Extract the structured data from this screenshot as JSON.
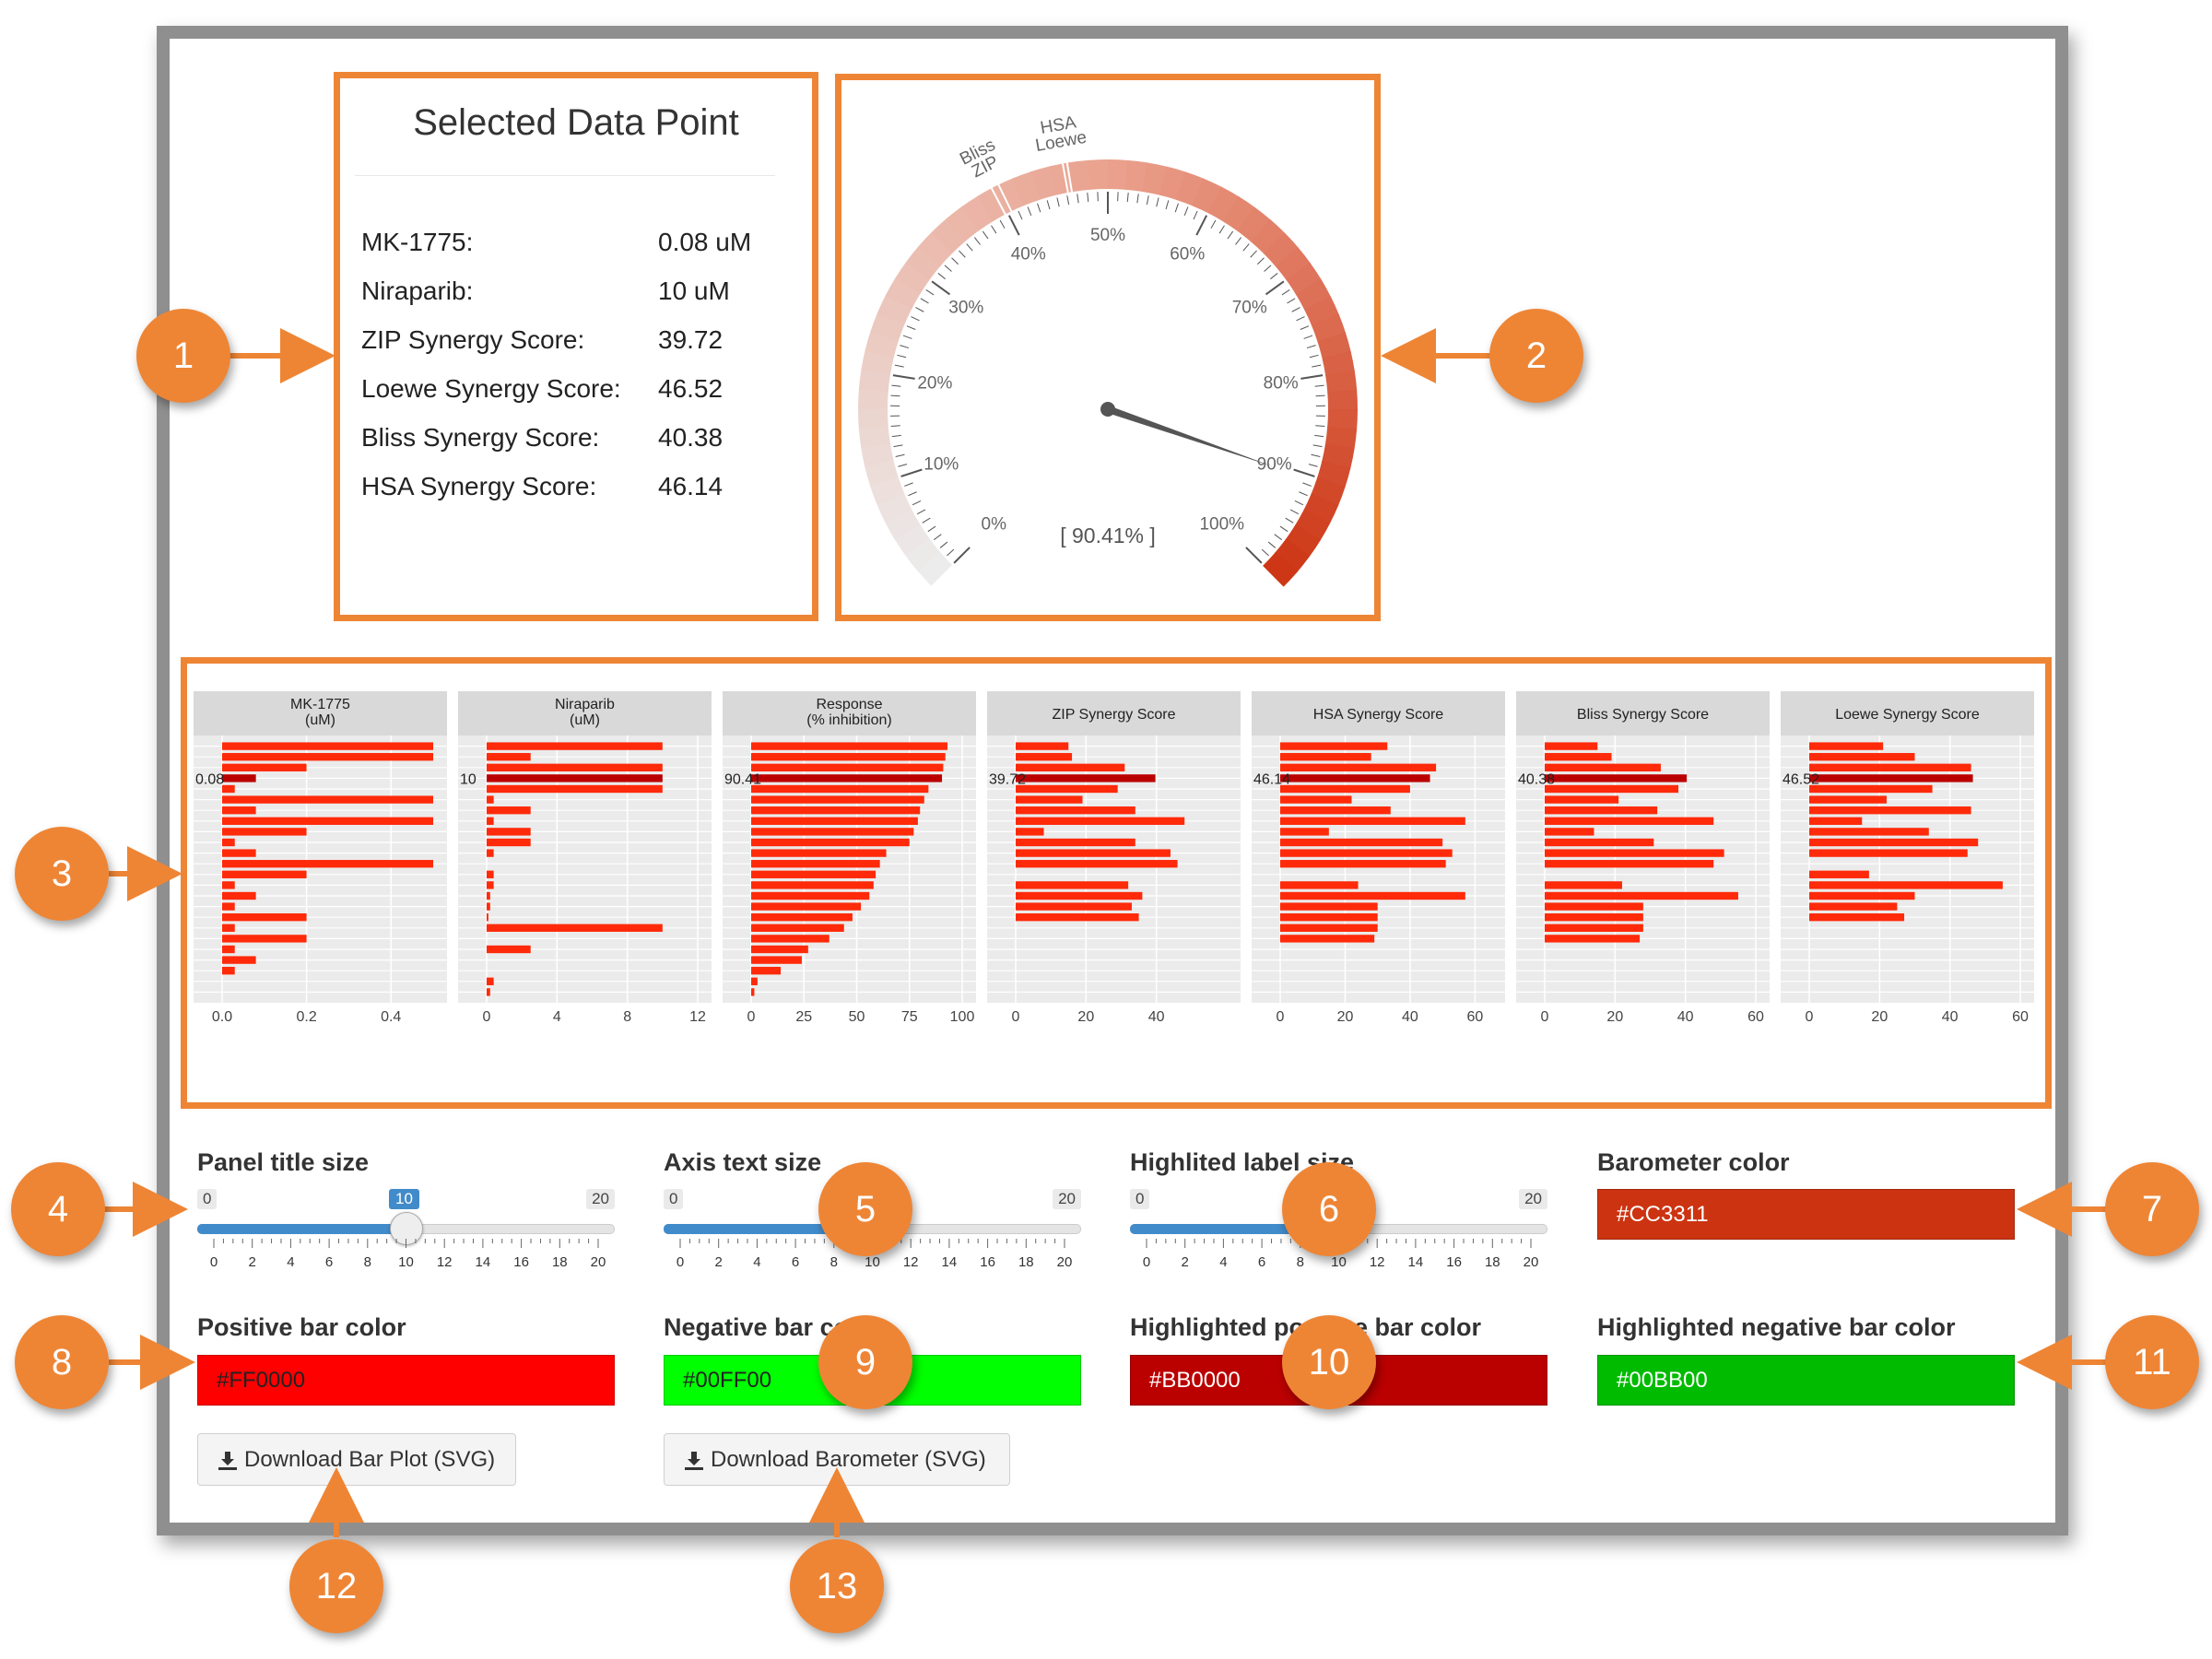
{
  "info": {
    "title": "Selected Data Point",
    "rows": [
      {
        "label": "MK-1775:",
        "value": "0.08 uM"
      },
      {
        "label": "Niraparib:",
        "value": "10 uM"
      },
      {
        "label": "ZIP Synergy Score:",
        "value": "39.72"
      },
      {
        "label": "Loewe Synergy Score:",
        "value": "46.52"
      },
      {
        "label": "Bliss Synergy Score:",
        "value": "40.38"
      },
      {
        "label": "HSA Synergy Score:",
        "value": "46.14"
      }
    ]
  },
  "gauge": {
    "value": 90.41,
    "readout": "[ 90.41% ]",
    "tick_labels": [
      "0%",
      "10%",
      "20%",
      "30%",
      "40%",
      "50%",
      "60%",
      "70%",
      "80%",
      "90%",
      "100%"
    ],
    "markers": [
      {
        "label": "HSA",
        "value": 46.14
      },
      {
        "label": "Loewe",
        "value": 46.52
      },
      {
        "label": "Bliss",
        "value": 40.38
      },
      {
        "label": "ZIP",
        "value": 39.72
      }
    ]
  },
  "chart_data": {
    "type": "bar",
    "orientation": "horizontal",
    "panels": [
      {
        "title": [
          "MK-1775",
          "(uM)"
        ],
        "xlim": [
          0,
          0.5
        ],
        "ticks": [
          0.0,
          0.2,
          0.4
        ],
        "tick_labels": [
          "0.0",
          "0.2",
          "0.4"
        ],
        "highlight_label": "0.08",
        "highlight_index": 3,
        "values": [
          0.5,
          0.5,
          0.2,
          0.08,
          0.03,
          0.5,
          0.08,
          0.5,
          0.2,
          0.03,
          0.08,
          0.5,
          0.2,
          0.03,
          0.08,
          0.03,
          0.2,
          0.03,
          0.2,
          0.03,
          0.08,
          0.03,
          0,
          0
        ]
      },
      {
        "title": [
          "Niraparib",
          "(uM)"
        ],
        "xlim": [
          0,
          12
        ],
        "ticks": [
          0,
          4,
          8,
          12
        ],
        "tick_labels": [
          "0",
          "4",
          "8",
          "12"
        ],
        "highlight_label": "10",
        "highlight_index": 3,
        "values": [
          10,
          2.5,
          10,
          10,
          10,
          0.4,
          2.5,
          0.4,
          2.5,
          2.5,
          0.4,
          0,
          0.4,
          0.4,
          0.2,
          0.2,
          0.1,
          10,
          0,
          2.5,
          0,
          0,
          0.4,
          0.2
        ]
      },
      {
        "title": [
          "Response",
          "(% inhibition)"
        ],
        "xlim": [
          0,
          100
        ],
        "ticks": [
          0,
          25,
          50,
          75,
          100
        ],
        "tick_labels": [
          "0",
          "25",
          "50",
          "75",
          "100"
        ],
        "highlight_label": "90.41",
        "highlight_index": 3,
        "values": [
          93,
          92,
          91,
          90.41,
          84,
          82,
          80,
          79,
          77,
          75,
          64,
          61,
          59,
          58,
          56,
          52,
          48,
          44,
          37,
          27,
          24,
          14,
          3,
          1.5
        ]
      },
      {
        "title": [
          "ZIP Synergy Score"
        ],
        "xlim": [
          0,
          60
        ],
        "ticks": [
          0,
          20,
          40
        ],
        "tick_labels": [
          "0",
          "20",
          "40"
        ],
        "highlight_label": "39.72",
        "highlight_index": 3,
        "values": [
          15,
          16,
          31,
          39.72,
          29,
          19,
          34,
          48,
          8,
          34,
          44,
          46,
          0,
          32,
          36,
          33,
          35,
          0,
          0,
          0,
          0,
          0,
          0,
          0
        ]
      },
      {
        "title": [
          "HSA Synergy Score"
        ],
        "xlim": [
          0,
          65
        ],
        "ticks": [
          0,
          20,
          40,
          60
        ],
        "tick_labels": [
          "0",
          "20",
          "40",
          "60"
        ],
        "highlight_label": "46.14",
        "highlight_index": 3,
        "values": [
          33,
          28,
          48,
          46.14,
          40,
          22,
          34,
          57,
          15,
          50,
          53,
          51,
          0,
          24,
          57,
          30,
          30,
          30,
          29,
          0,
          0,
          0,
          0,
          0
        ]
      },
      {
        "title": [
          "Bliss Synergy Score"
        ],
        "xlim": [
          0,
          60
        ],
        "ticks": [
          0,
          20,
          40,
          60
        ],
        "tick_labels": [
          "0",
          "20",
          "40",
          "60"
        ],
        "highlight_label": "40.38",
        "highlight_index": 3,
        "values": [
          15,
          19,
          33,
          40.38,
          38,
          21,
          32,
          48,
          14,
          31,
          51,
          48,
          0,
          22,
          55,
          28,
          28,
          28,
          27,
          0,
          0,
          0,
          0,
          0
        ]
      },
      {
        "title": [
          "Loewe Synergy Score"
        ],
        "xlim": [
          0,
          60
        ],
        "ticks": [
          0,
          20,
          40,
          60
        ],
        "tick_labels": [
          "0",
          "20",
          "40",
          "60"
        ],
        "highlight_label": "46.52",
        "highlight_index": 3,
        "values": [
          21,
          30,
          46,
          46.52,
          35,
          22,
          46,
          15,
          34,
          48,
          45,
          0,
          17,
          55,
          30,
          25,
          27,
          0,
          0,
          0,
          0,
          0,
          0,
          0
        ]
      }
    ]
  },
  "controls": {
    "panel_title_size": {
      "label": "Panel title size",
      "min": "0",
      "max": "20",
      "value": 10,
      "value_label": "10"
    },
    "axis_text_size": {
      "label": "Axis text size",
      "min": "0",
      "max": "20",
      "value": 9
    },
    "highlighted_label_size": {
      "label": "Highlited label size",
      "min": "0",
      "max": "20",
      "value": 9
    },
    "slider_ticks": [
      "0",
      "2",
      "4",
      "6",
      "8",
      "10",
      "12",
      "14",
      "16",
      "18",
      "20"
    ],
    "barometer_color": {
      "label": "Barometer color",
      "value": "#CC3311"
    },
    "positive_bar_color": {
      "label": "Positive bar color",
      "value": "#FF0000"
    },
    "negative_bar_color": {
      "label": "Negative bar color",
      "value": "#00FF00"
    },
    "highlighted_positive_bar_color": {
      "label": "Highlighted positive bar color",
      "value": "#BB0000"
    },
    "highlighted_negative_bar_color": {
      "label": "Highlighted negative bar color",
      "value": "#00BB00"
    },
    "download_bar_plot": "Download Bar Plot (SVG)",
    "download_barometer": "Download Barometer (SVG)"
  },
  "callouts": [
    "1",
    "2",
    "3",
    "4",
    "5",
    "6",
    "7",
    "8",
    "9",
    "10",
    "11",
    "12",
    "13"
  ],
  "colors": {
    "accent": "#EE8535",
    "bar": "#FF2A0A",
    "highlight_bar": "#BB0000",
    "slider": "#428BCA"
  }
}
